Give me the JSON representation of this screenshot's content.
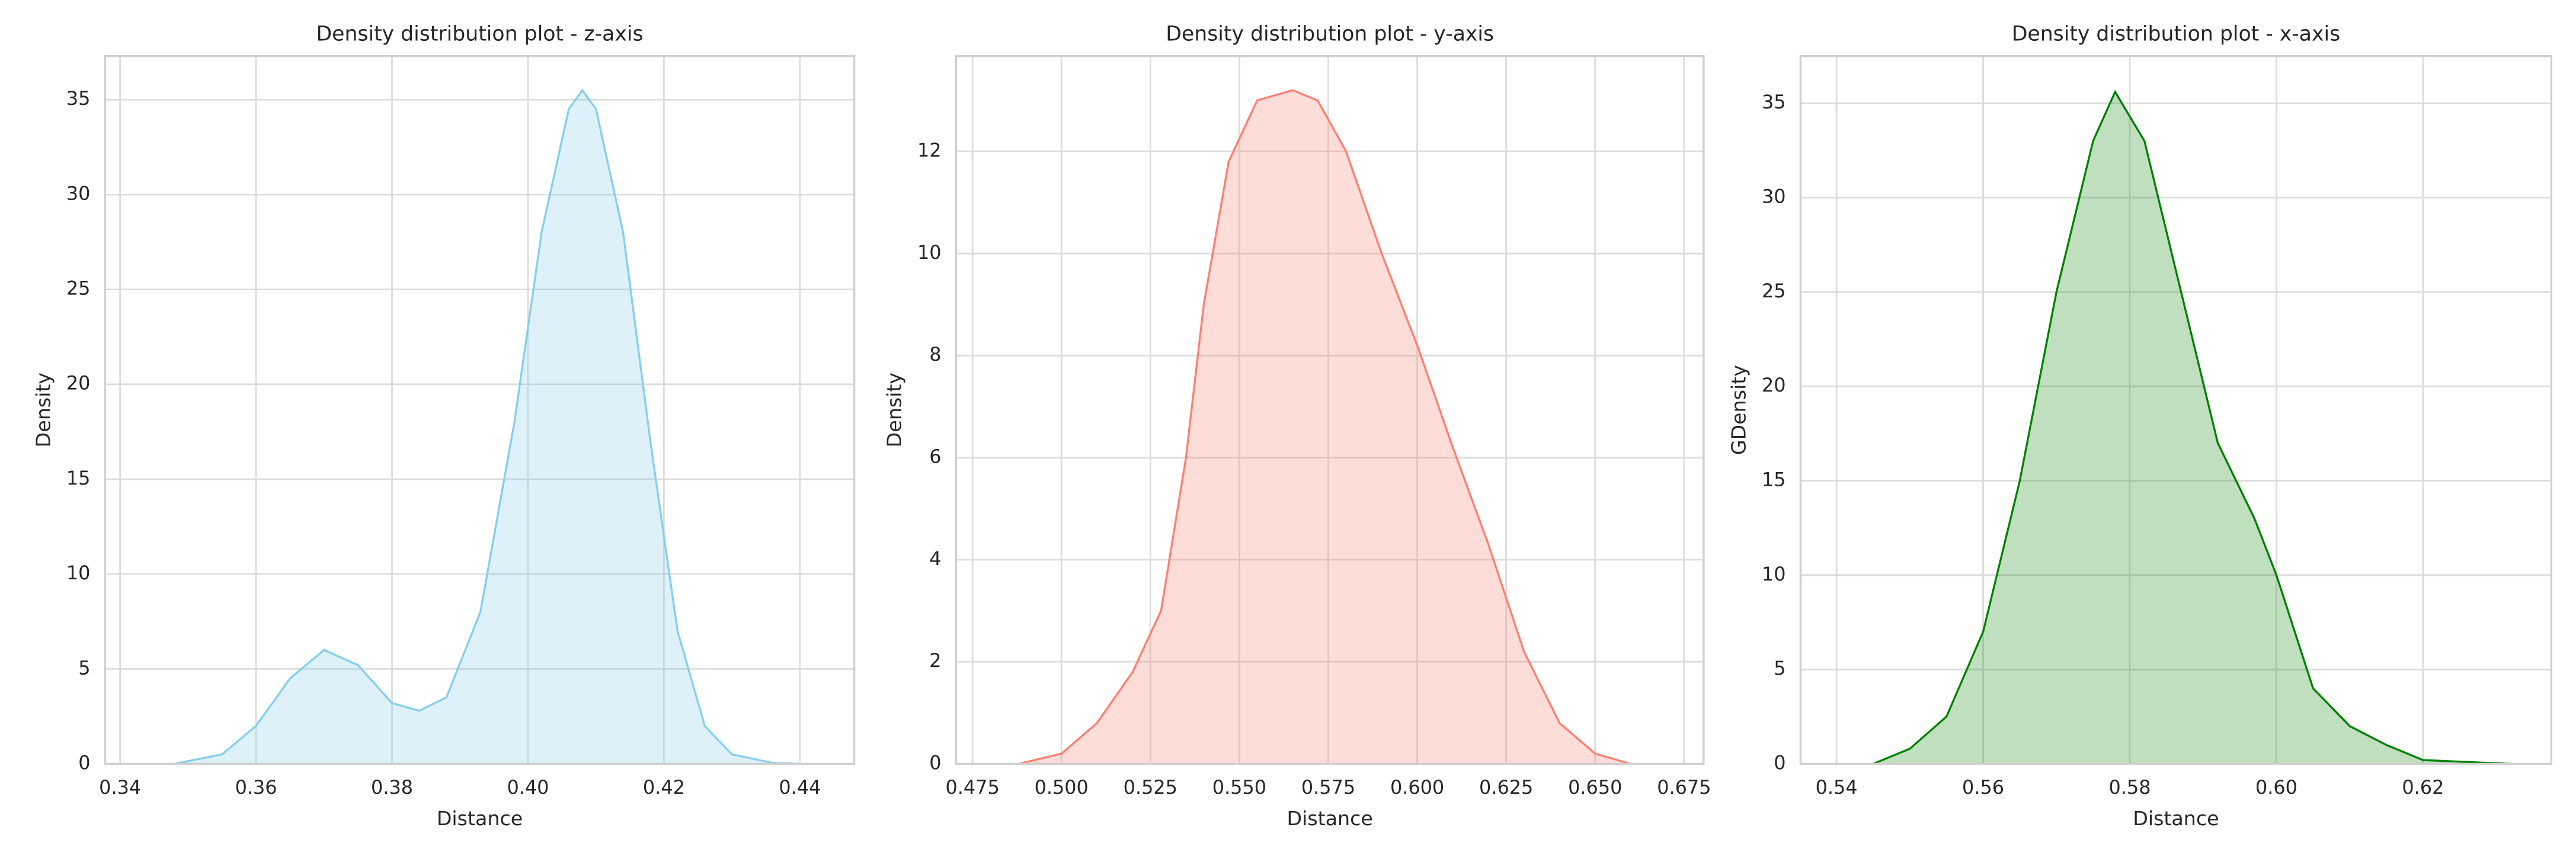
{
  "chart_data": [
    {
      "type": "area",
      "title": "Density distribution plot - z-axis",
      "xlabel": "Distance",
      "ylabel": "Density",
      "x": [
        0.348,
        0.355,
        0.36,
        0.365,
        0.37,
        0.375,
        0.38,
        0.384,
        0.388,
        0.393,
        0.398,
        0.402,
        0.406,
        0.408,
        0.41,
        0.414,
        0.418,
        0.422,
        0.426,
        0.43,
        0.436,
        0.44
      ],
      "values": [
        0,
        0.5,
        2,
        4.5,
        6,
        5.2,
        3.2,
        2.8,
        3.5,
        8,
        18,
        28,
        34.5,
        35.5,
        34.5,
        28,
        17,
        7,
        2,
        0.5,
        0.05,
        0
      ],
      "color": "#87ceeb",
      "fill_alpha": 0.28,
      "xlim": [
        0.3378,
        0.448
      ],
      "ylim": [
        0,
        37.3
      ],
      "xticks": [
        0.34,
        0.36,
        0.38,
        {
          "value": 0.4,
          "label": "0.40"
        },
        0.42,
        0.44
      ],
      "yticks": [
        0,
        5,
        10,
        15,
        20,
        25,
        30,
        35
      ],
      "grid": true
    },
    {
      "type": "area",
      "title": "Density distribution plot - y-axis",
      "xlabel": "Distance",
      "ylabel": "Density",
      "x": [
        0.488,
        0.5,
        0.51,
        0.52,
        0.528,
        0.535,
        0.54,
        0.547,
        0.555,
        0.565,
        0.572,
        0.58,
        0.59,
        0.6,
        0.61,
        0.62,
        0.63,
        0.64,
        0.65,
        0.66
      ],
      "values": [
        0,
        0.2,
        0.8,
        1.8,
        3,
        6,
        9,
        11.8,
        13,
        13.2,
        13,
        12,
        10,
        8.2,
        6.2,
        4.3,
        2.2,
        0.8,
        0.2,
        0
      ],
      "color": "#fa8072",
      "fill_alpha": 0.28,
      "xlim": [
        0.4704,
        0.6805
      ],
      "ylim": [
        0,
        13.87
      ],
      "xticks": [
        0.475,
        {
          "value": 0.5,
          "label": "0.500"
        },
        0.525,
        {
          "value": 0.55,
          "label": "0.550"
        },
        0.575,
        {
          "value": 0.6,
          "label": "0.600"
        },
        0.625,
        {
          "value": 0.65,
          "label": "0.650"
        },
        0.675
      ],
      "yticks": [
        0,
        2,
        4,
        6,
        8,
        10,
        12
      ],
      "grid": true
    },
    {
      "type": "area",
      "title": "Density distribution plot - x-axis",
      "xlabel": "Distance",
      "ylabel": "GDensity",
      "x": [
        0.545,
        0.55,
        0.555,
        0.56,
        0.565,
        0.57,
        0.575,
        0.578,
        0.582,
        0.587,
        0.592,
        0.597,
        0.6,
        0.605,
        0.61,
        0.615,
        0.62,
        0.632
      ],
      "values": [
        0,
        0.8,
        2.5,
        7,
        15,
        25,
        33,
        35.6,
        33,
        25,
        17,
        13,
        10,
        4,
        2,
        1,
        0.2,
        0
      ],
      "color": "#008000",
      "fill_alpha": 0.25,
      "xlim": [
        0.5351,
        0.6375
      ],
      "ylim": [
        0,
        37.5
      ],
      "xticks": [
        0.54,
        0.56,
        0.58,
        {
          "value": 0.6,
          "label": "0.60"
        },
        0.62
      ],
      "yticks": [
        0,
        5,
        10,
        15,
        20,
        25,
        30,
        35
      ],
      "grid": true
    }
  ]
}
